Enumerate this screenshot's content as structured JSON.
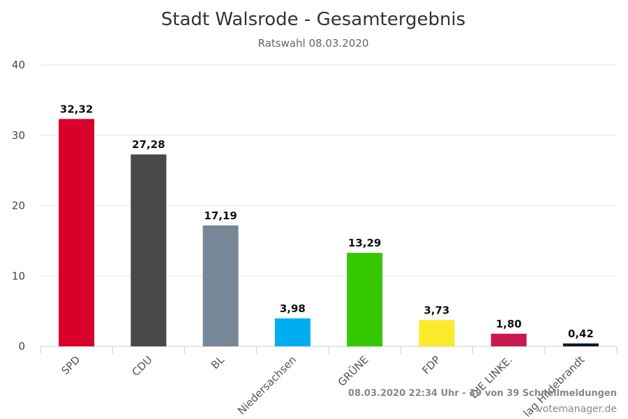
{
  "chart_data": {
    "type": "bar",
    "title": "Stadt Walsrode - Gesamtergebnis",
    "subtitle": "Ratswahl 08.03.2020",
    "xlabel": "",
    "ylabel": "",
    "ylim": [
      0,
      40
    ],
    "yticks": [
      "0",
      "10",
      "20",
      "30",
      "40"
    ],
    "grid": true,
    "categories": [
      "SPD",
      "CDU",
      "BL",
      "Niedersachsen",
      "GRÜNE",
      "FDP",
      "DIE LINKE.",
      "lag Hildebrandt"
    ],
    "values": [
      32.32,
      27.28,
      17.19,
      3.98,
      13.29,
      3.73,
      1.8,
      0.42
    ],
    "value_labels": [
      "32,32",
      "27,28",
      "17,19",
      "3,98",
      "13,29",
      "3,73",
      "1,80",
      "0,42"
    ],
    "colors": [
      "#d8002a",
      "#494949",
      "#768797",
      "#00aeef",
      "#35c800",
      "#fbe92c",
      "#c8194f",
      "#0d1a2d"
    ]
  },
  "footer": {
    "timestamp": "08.03.2020 22:34 Uhr - 39 von 39 Schnellmeldungen",
    "credit": "votemanager.de"
  }
}
